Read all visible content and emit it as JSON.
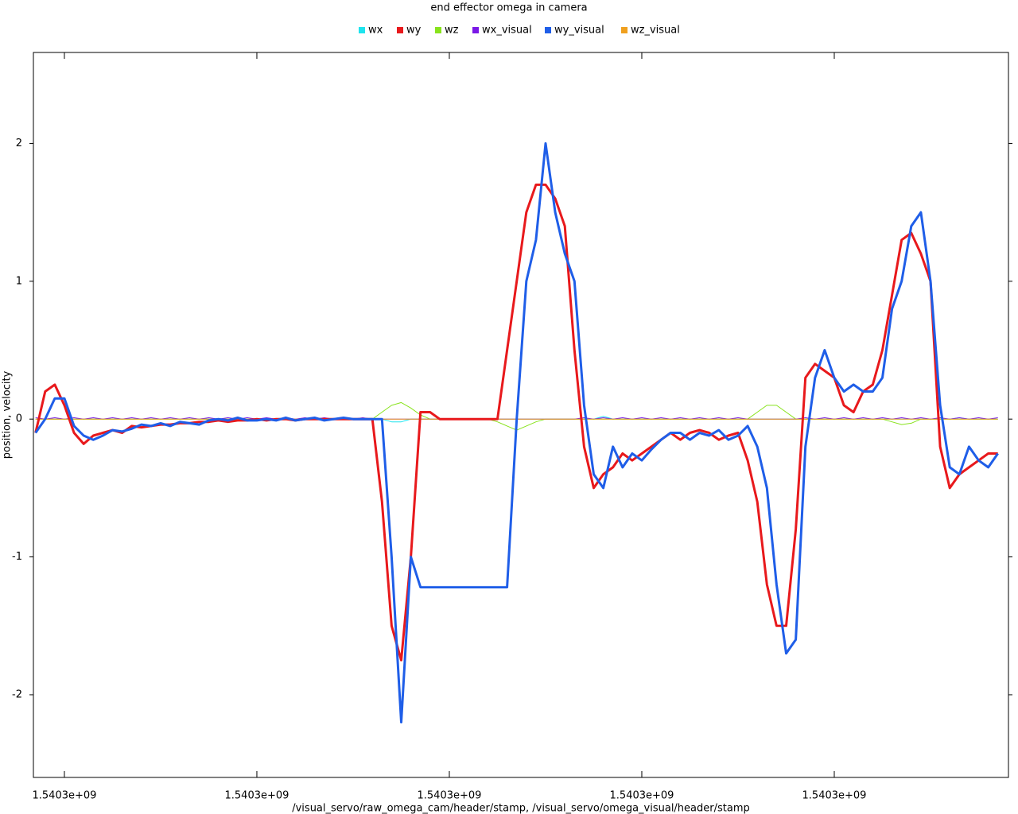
{
  "chart_data": {
    "type": "line",
    "title": "end effector omega in camera",
    "x_label": "/visual_servo/raw_omega_cam/header/stamp, /visual_servo/omega_visual/header/stamp",
    "y_label": "position, velocity",
    "legend": "top",
    "xlim": [
      1540300008.39,
      1540300059.05
    ],
    "xticks": [
      {
        "value": 1540300010,
        "label": "1.5403e+09"
      },
      {
        "value": 1540300020,
        "label": "1.5403e+09"
      },
      {
        "value": 1540300030,
        "label": "1.5403e+09"
      },
      {
        "value": 1540300040,
        "label": "1.5403e+09"
      },
      {
        "value": 1540300050,
        "label": "1.5403e+09"
      }
    ],
    "ylim": [
      -2.6,
      2.66
    ],
    "yticks": [
      2,
      1,
      0,
      -1,
      -2
    ],
    "x": [
      1540300008.5,
      1540300009,
      1540300009.5,
      1540300010,
      1540300010.5,
      1540300011,
      1540300011.5,
      1540300012,
      1540300012.5,
      1540300013,
      1540300013.5,
      1540300014,
      1540300014.5,
      1540300015,
      1540300015.5,
      1540300016,
      1540300016.5,
      1540300017,
      1540300017.5,
      1540300018,
      1540300018.5,
      1540300019,
      1540300019.5,
      1540300020,
      1540300020.5,
      1540300021,
      1540300021.5,
      1540300022,
      1540300022.5,
      1540300023,
      1540300023.5,
      1540300024,
      1540300024.5,
      1540300025,
      1540300025.5,
      1540300026,
      1540300026.5,
      1540300027,
      1540300027.5,
      1540300028,
      1540300028.5,
      1540300029,
      1540300029.5,
      1540300030,
      1540300030.5,
      1540300031,
      1540300031.5,
      1540300032,
      1540300032.5,
      1540300033,
      1540300033.5,
      1540300034,
      1540300034.5,
      1540300035,
      1540300035.5,
      1540300036,
      1540300036.5,
      1540300037,
      1540300037.5,
      1540300038,
      1540300038.5,
      1540300039,
      1540300039.5,
      1540300040,
      1540300040.5,
      1540300041,
      1540300041.5,
      1540300042,
      1540300042.5,
      1540300043,
      1540300043.5,
      1540300044,
      1540300044.5,
      1540300045,
      1540300045.5,
      1540300046,
      1540300046.5,
      1540300047,
      1540300047.5,
      1540300048,
      1540300048.5,
      1540300049,
      1540300049.5,
      1540300050,
      1540300050.5,
      1540300051,
      1540300051.5,
      1540300052,
      1540300052.5,
      1540300053,
      1540300053.5,
      1540300054,
      1540300054.5,
      1540300055,
      1540300055.5,
      1540300056,
      1540300056.5,
      1540300057,
      1540300057.5,
      1540300058,
      1540300058.5
    ],
    "series": [
      {
        "name": "wx",
        "color": "#1ee4ee",
        "values": [
          0,
          0,
          0,
          0,
          0,
          0,
          0,
          0,
          0,
          0,
          0,
          0,
          0,
          0,
          0,
          0,
          0,
          0,
          0,
          0,
          0,
          0,
          0,
          0,
          0,
          0,
          0,
          0,
          0,
          0,
          0,
          0,
          0,
          0,
          0,
          0,
          0,
          -0.02,
          -0.02,
          0,
          0,
          0,
          0,
          0,
          0,
          0,
          0,
          0,
          0,
          0,
          0,
          0,
          0,
          0,
          0,
          0,
          0,
          0,
          0,
          0.02,
          0,
          0,
          0,
          0,
          0,
          0,
          0,
          0,
          0,
          0,
          0,
          0,
          0,
          0,
          0,
          0,
          0,
          0,
          0,
          0,
          0,
          0,
          0,
          0,
          0,
          0,
          0,
          0,
          0,
          0,
          0,
          0,
          0,
          0,
          0,
          0,
          0.01,
          0,
          0,
          0,
          0
        ]
      },
      {
        "name": "wy",
        "color": "#e8191c",
        "values": [
          -0.1,
          0.2,
          0.25,
          0.1,
          -0.1,
          -0.18,
          -0.12,
          -0.1,
          -0.08,
          -0.1,
          -0.05,
          -0.06,
          -0.05,
          -0.04,
          -0.04,
          -0.03,
          -0.03,
          -0.02,
          -0.02,
          -0.01,
          -0.02,
          -0.01,
          -0.01,
          0,
          -0.01,
          0,
          0,
          -0.01,
          0,
          0,
          0,
          0,
          0,
          0,
          0,
          0,
          -0.6,
          -1.5,
          -1.75,
          -1.0,
          0.05,
          0.05,
          0,
          0,
          0,
          0,
          0,
          0,
          0,
          0.5,
          1.0,
          1.5,
          1.7,
          1.7,
          1.6,
          1.4,
          0.5,
          -0.2,
          -0.5,
          -0.4,
          -0.35,
          -0.25,
          -0.3,
          -0.25,
          -0.2,
          -0.15,
          -0.1,
          -0.15,
          -0.1,
          -0.08,
          -0.1,
          -0.15,
          -0.12,
          -0.1,
          -0.3,
          -0.6,
          -1.2,
          -1.5,
          -1.5,
          -0.8,
          0.3,
          0.4,
          0.35,
          0.3,
          0.1,
          0.05,
          0.2,
          0.25,
          0.5,
          0.9,
          1.3,
          1.35,
          1.2,
          1.0,
          -0.2,
          -0.5,
          -0.4,
          -0.35,
          -0.3,
          -0.25,
          -0.25
        ]
      },
      {
        "name": "wz",
        "color": "#88e31c",
        "values": [
          0,
          0,
          0,
          0,
          0,
          0,
          0,
          0,
          0,
          0,
          0,
          0,
          0,
          0,
          0,
          0,
          0,
          0,
          0,
          0,
          0,
          0,
          0,
          0,
          0,
          0,
          0,
          0,
          0,
          0,
          0,
          0,
          0,
          0,
          0,
          0,
          0.05,
          0.1,
          0.12,
          0.08,
          0.03,
          0,
          0,
          0,
          0,
          0,
          0,
          0,
          -0.02,
          -0.05,
          -0.08,
          -0.05,
          -0.02,
          0,
          0,
          0,
          0,
          0,
          0,
          0,
          0,
          0,
          0,
          0,
          0,
          0,
          0,
          0,
          0,
          0,
          0,
          0,
          0,
          0,
          0,
          0.05,
          0.1,
          0.1,
          0.05,
          0,
          0,
          0,
          0,
          0,
          0,
          0,
          0,
          0,
          0,
          -0.02,
          -0.04,
          -0.03,
          0,
          0,
          0,
          0,
          0,
          0,
          0,
          0,
          0
        ]
      },
      {
        "name": "wx_visual",
        "color": "#7a18e6",
        "values": [
          0.01,
          0,
          0.01,
          0,
          0.01,
          0,
          0.01,
          0,
          0.01,
          0,
          0.01,
          0,
          0.01,
          0,
          0.01,
          0,
          0.01,
          0,
          0.01,
          0,
          0.01,
          0,
          0.01,
          0,
          0.01,
          0,
          0.01,
          0,
          0.01,
          0,
          0.01,
          0,
          0.01,
          0,
          0.01,
          0,
          0,
          0,
          0,
          0,
          0,
          0,
          0,
          0,
          0,
          0,
          0,
          0,
          0,
          0,
          0,
          0,
          0,
          0,
          0,
          0,
          0,
          0.01,
          0,
          0.01,
          0,
          0.01,
          0,
          0.01,
          0,
          0.01,
          0,
          0.01,
          0,
          0.01,
          0,
          0.01,
          0,
          0.01,
          0,
          0,
          0,
          0,
          0,
          0,
          0.01,
          0,
          0.01,
          0,
          0.01,
          0,
          0.01,
          0,
          0.01,
          0,
          0.01,
          0,
          0.01,
          0,
          0.01,
          0,
          0.01,
          0,
          0.01,
          0,
          0.01
        ]
      },
      {
        "name": "wy_visual",
        "color": "#1f5ee8",
        "values": [
          -0.1,
          0.0,
          0.15,
          0.15,
          -0.05,
          -0.12,
          -0.15,
          -0.12,
          -0.08,
          -0.09,
          -0.07,
          -0.04,
          -0.05,
          -0.03,
          -0.05,
          -0.02,
          -0.03,
          -0.04,
          -0.01,
          0.0,
          -0.01,
          0.01,
          -0.01,
          -0.01,
          0,
          -0.01,
          0.01,
          -0.01,
          0,
          0.01,
          -0.01,
          0,
          0.01,
          0,
          0,
          0,
          0,
          -1.0,
          -2.2,
          -1.0,
          -1.22,
          -1.22,
          -1.22,
          -1.22,
          -1.22,
          -1.22,
          -1.22,
          -1.22,
          -1.22,
          -1.22,
          0.0,
          1.0,
          1.3,
          2.0,
          1.5,
          1.2,
          1.0,
          0.1,
          -0.4,
          -0.5,
          -0.2,
          -0.35,
          -0.25,
          -0.3,
          -0.22,
          -0.15,
          -0.1,
          -0.1,
          -0.15,
          -0.1,
          -0.12,
          -0.08,
          -0.15,
          -0.12,
          -0.05,
          -0.2,
          -0.5,
          -1.2,
          -1.7,
          -1.6,
          -0.2,
          0.3,
          0.5,
          0.3,
          0.2,
          0.25,
          0.2,
          0.2,
          0.3,
          0.8,
          1.0,
          1.4,
          1.5,
          1.0,
          0.1,
          -0.35,
          -0.4,
          -0.2,
          -0.3,
          -0.35,
          -0.25
        ]
      },
      {
        "name": "wz_visual",
        "color": "#f0a01e",
        "values": [
          0,
          0,
          0,
          0,
          0,
          0,
          0,
          0,
          0,
          0,
          0,
          0,
          0,
          0,
          0,
          0,
          0,
          0,
          0,
          0,
          0,
          0,
          0,
          0,
          0,
          0,
          0,
          0,
          0,
          0,
          0,
          0,
          0,
          0,
          0,
          0,
          0,
          0,
          0,
          0,
          0,
          0,
          0,
          0,
          0,
          0,
          0,
          0,
          0,
          0,
          0,
          0,
          0,
          0,
          0,
          0,
          0,
          0,
          0,
          0,
          0,
          0,
          0,
          0,
          0,
          0,
          0,
          0,
          0,
          0,
          0,
          0,
          0,
          0,
          0,
          0,
          0,
          0,
          0,
          0,
          0,
          0,
          0,
          0,
          0,
          0,
          0,
          0,
          0,
          0,
          0,
          0,
          0,
          0,
          0,
          0,
          0,
          0,
          0,
          0,
          0
        ]
      }
    ]
  }
}
